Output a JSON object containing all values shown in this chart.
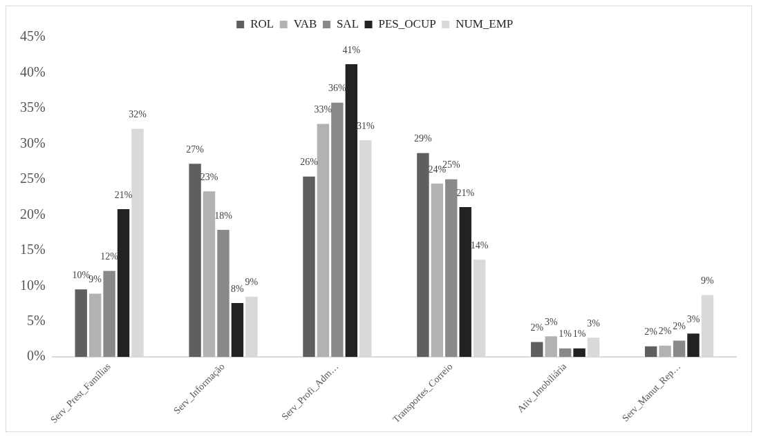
{
  "chart_data": {
    "type": "bar",
    "categories": [
      "Serv_Prest_Famílias",
      "Serv_Informação",
      "Serv_Profi_Adm…",
      "Transportes_Correio",
      "Ativ_Imobiliária",
      "Serv_Manut_Rep…"
    ],
    "series": [
      {
        "name": "ROL",
        "color": "#5f5f5f",
        "values": [
          9.6,
          27.3,
          25.5,
          28.8,
          2.2,
          1.6
        ],
        "value_labels": [
          "10%",
          "27%",
          "26%",
          "29%",
          "2%",
          "2%"
        ]
      },
      {
        "name": "VAB",
        "color": "#b2b2b2",
        "values": [
          9.0,
          23.4,
          32.9,
          24.5,
          3.0,
          1.7
        ],
        "value_labels": [
          "9%",
          "23%",
          "33%",
          "24%",
          "3%",
          "2%"
        ]
      },
      {
        "name": "SAL",
        "color": "#898989",
        "values": [
          12.2,
          18.0,
          35.9,
          25.1,
          1.3,
          2.4
        ],
        "value_labels": [
          "12%",
          "18%",
          "36%",
          "25%",
          "1%",
          "2%"
        ]
      },
      {
        "name": "PES_OCUP",
        "color": "#222222",
        "values": [
          20.9,
          7.7,
          41.3,
          21.2,
          1.3,
          3.4
        ],
        "value_labels": [
          "21%",
          "8%",
          "41%",
          "21%",
          "1%",
          "3%"
        ]
      },
      {
        "name": "NUM_EMP",
        "color": "#d9d9d9",
        "values": [
          32.2,
          8.6,
          30.6,
          13.8,
          2.8,
          8.8
        ],
        "value_labels": [
          "32%",
          "9%",
          "31%",
          "14%",
          "3%",
          "9%"
        ]
      }
    ],
    "ylim": [
      0,
      45
    ],
    "yticks": [
      {
        "value": 0,
        "label": "0%"
      },
      {
        "value": 5,
        "label": "5%"
      },
      {
        "value": 10,
        "label": "10%"
      },
      {
        "value": 15,
        "label": "15%"
      },
      {
        "value": 20,
        "label": "20%"
      },
      {
        "value": 25,
        "label": "25%"
      },
      {
        "value": 30,
        "label": "30%"
      },
      {
        "value": 35,
        "label": "35%"
      },
      {
        "value": 40,
        "label": "40%"
      },
      {
        "value": 45,
        "label": "45%"
      }
    ],
    "grid": false,
    "legend": "top"
  }
}
